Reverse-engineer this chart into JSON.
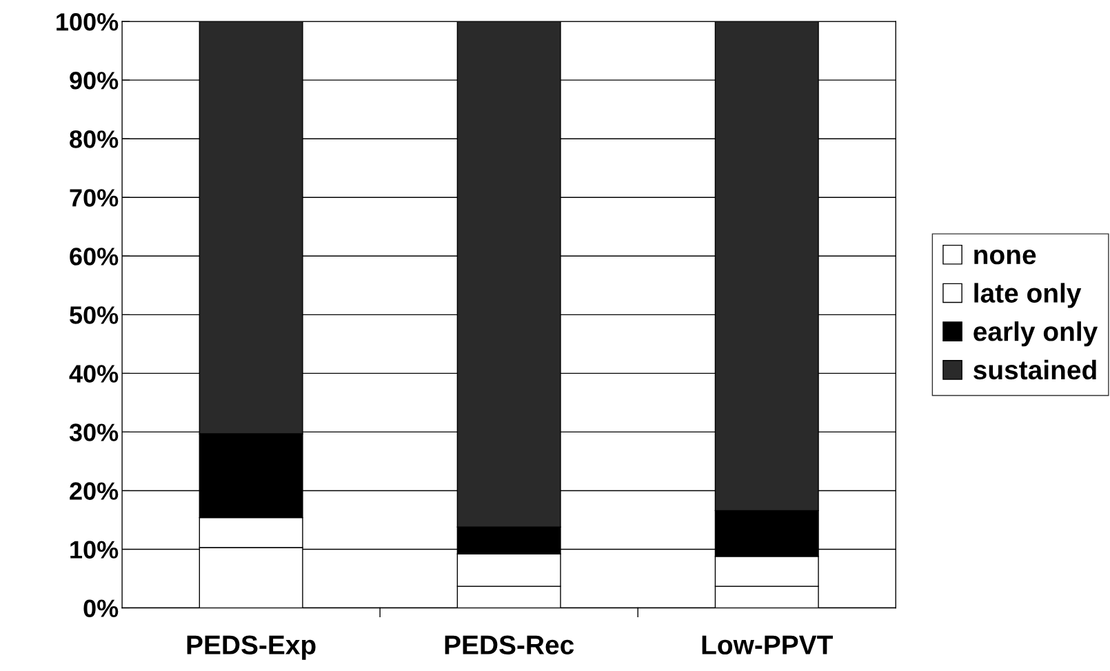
{
  "chart_data": {
    "type": "bar",
    "stacked": true,
    "categories": [
      "PEDS-Exp",
      "PEDS-Rec",
      "Low-PPVT"
    ],
    "series": [
      {
        "name": "none",
        "color": "#ffffff",
        "values": [
          10.3,
          3.7,
          3.7
        ]
      },
      {
        "name": "late only",
        "color": "#ffffff",
        "values": [
          5.1,
          5.5,
          5.1
        ]
      },
      {
        "name": "early only",
        "color": "#000000",
        "values": [
          14.3,
          4.6,
          7.8
        ]
      },
      {
        "name": "sustained",
        "color": "#2a2a2a",
        "values": [
          70.3,
          86.2,
          83.4
        ]
      }
    ],
    "ylim": [
      0,
      100
    ],
    "yticks": [
      {
        "value": 0,
        "label": "0%"
      },
      {
        "value": 10,
        "label": "10%"
      },
      {
        "value": 20,
        "label": "20%"
      },
      {
        "value": 30,
        "label": "30%"
      },
      {
        "value": 40,
        "label": "40%"
      },
      {
        "value": 50,
        "label": "50%"
      },
      {
        "value": 60,
        "label": "60%"
      },
      {
        "value": 70,
        "label": "70%"
      },
      {
        "value": 80,
        "label": "80%"
      },
      {
        "value": 90,
        "label": "90%"
      },
      {
        "value": 100,
        "label": "100%"
      }
    ],
    "grid": "y",
    "legend": "right"
  }
}
